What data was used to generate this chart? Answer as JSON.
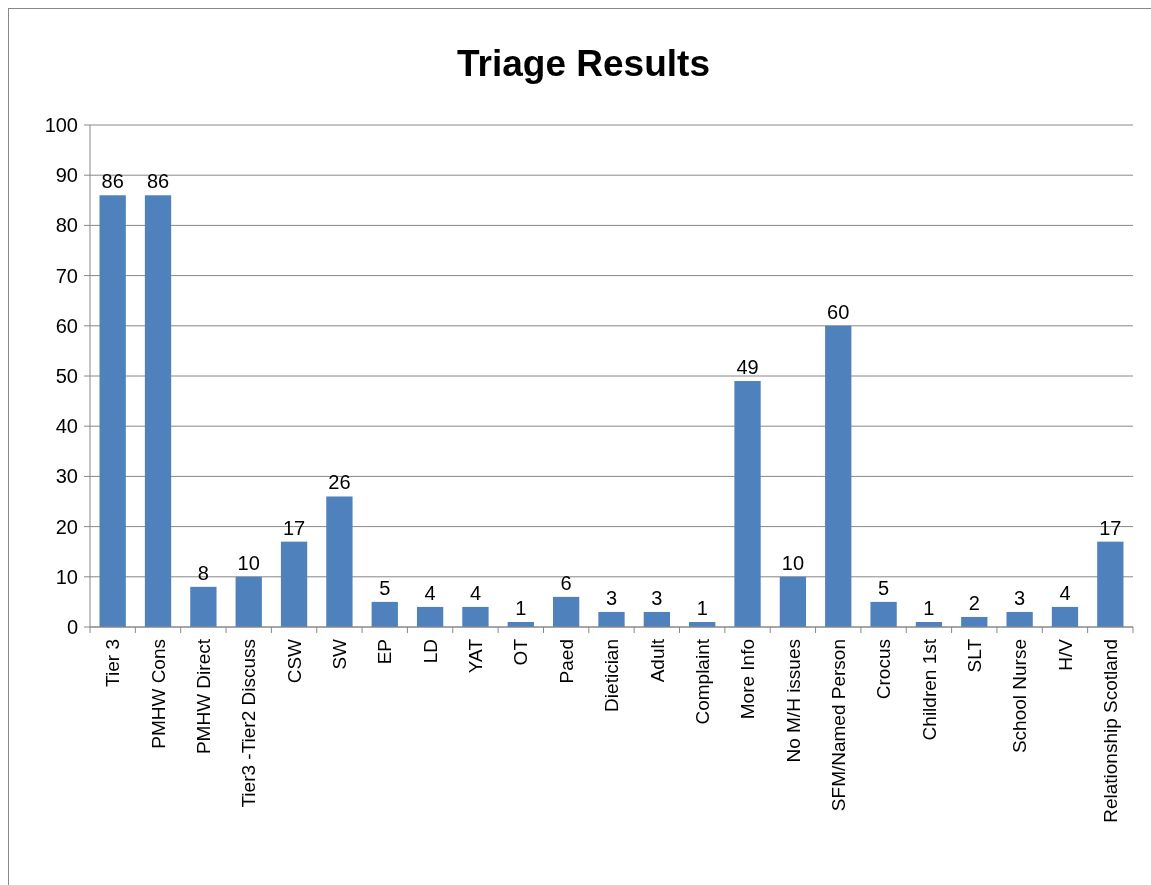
{
  "chart_data": {
    "type": "bar",
    "title": "Triage Results",
    "categories": [
      "Tier 3",
      "PMHW Cons",
      "PMHW Direct",
      "Tier3 -Tier2 Discuss",
      "CSW",
      "SW",
      "EP",
      "LD",
      "YAT",
      "OT",
      "Paed",
      "Dietician",
      "Adult",
      "Complaint",
      "More Info",
      "No M/H issues",
      "SFM/Named Person",
      "Crocus",
      "Children 1st",
      "SLT",
      "School Nurse",
      "H/V",
      "Relationship Scotland"
    ],
    "values": [
      86,
      86,
      8,
      10,
      17,
      26,
      5,
      4,
      4,
      1,
      6,
      3,
      3,
      1,
      49,
      10,
      60,
      5,
      1,
      2,
      3,
      4,
      17
    ],
    "color": "#4f81bd",
    "ylim": [
      0,
      100
    ],
    "yticks": [
      0,
      10,
      20,
      30,
      40,
      50,
      60,
      70,
      80,
      90,
      100
    ],
    "grid": "y",
    "data_labels": true
  }
}
